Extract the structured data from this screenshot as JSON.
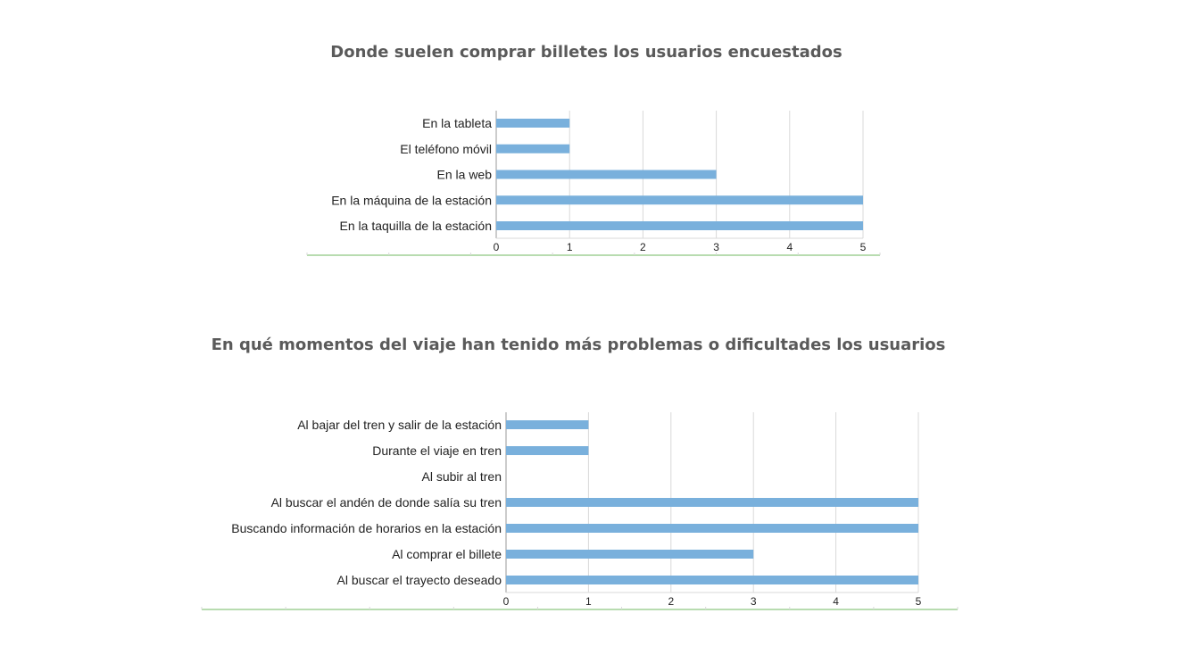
{
  "colors": {
    "bar": "#79b0dc",
    "grid": "#d9d9d9",
    "axis": "#999999",
    "baseline": "#b8dcb0",
    "title": "#5a5a5a"
  },
  "chart_data": [
    {
      "type": "bar",
      "orientation": "horizontal",
      "title": "Donde suelen comprar billetes los usuarios encuestados",
      "categories": [
        "En la tableta",
        "El teléfono móvil",
        "En la web",
        "En la máquina de la estación",
        "En la taquilla de la estación"
      ],
      "values": [
        1,
        1,
        3,
        5,
        5
      ],
      "xlim": [
        0,
        5
      ],
      "xticks": [
        "0",
        "1",
        "2",
        "3",
        "4",
        "5"
      ],
      "xlabel": "",
      "ylabel": "",
      "grid": true
    },
    {
      "type": "bar",
      "orientation": "horizontal",
      "title": "En qué momentos del viaje han tenido más problemas o dificultades los usuarios",
      "categories": [
        "Al bajar del tren y salir de la estación",
        "Durante el viaje en tren",
        "Al subir al tren",
        "Al buscar el andén de donde salía su tren",
        "Buscando información de horarios en la estación",
        "Al comprar el billete",
        "Al buscar el trayecto deseado"
      ],
      "values": [
        1,
        1,
        0,
        5,
        5,
        3,
        5
      ],
      "xlim": [
        0,
        5
      ],
      "xticks": [
        "0",
        "1",
        "2",
        "3",
        "4",
        "5"
      ],
      "xlabel": "",
      "ylabel": "",
      "grid": true
    }
  ]
}
